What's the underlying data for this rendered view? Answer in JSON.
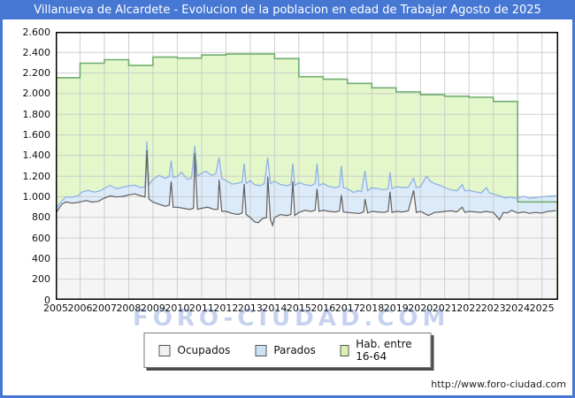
{
  "title_bar": {
    "text": "Villanueva de Alcardete - Evolucion de la poblacion en edad de Trabajar Agosto de 2025"
  },
  "watermark": "FORO-CIUDAD.COM",
  "footer": {
    "url": "http://www.foro-ciudad.com"
  },
  "colors": {
    "accent_blue": "#4677d3",
    "grid": "#c9c9c9",
    "frame": "#000000",
    "green_line": "#6fae6f",
    "green_fill": "#e4f7cb",
    "blue_line": "#90b3e2",
    "blue_fill": "#dcebf9",
    "dark_line": "#5f5f5f",
    "ocup_fill": "#f5f5f5",
    "plot_bg": "#ffffff"
  },
  "legend": [
    {
      "label": "Ocupados",
      "swatch": "#f2f2f2"
    },
    {
      "label": "Parados",
      "swatch": "#cfe1f5"
    },
    {
      "label": "Hab. entre 16-64",
      "swatch": "#d9f2ae"
    }
  ],
  "chart_data": {
    "type": "area",
    "title": "Villanueva de Alcardete - Evolucion de la poblacion en edad de Trabajar Agosto de 2025",
    "xlabel": "",
    "ylabel": "",
    "xlim": [
      2005,
      2025.667
    ],
    "ylim": [
      0,
      2600
    ],
    "grid": true,
    "legend_position": "bottom",
    "x_ticks": [
      2005,
      2006,
      2007,
      2008,
      2009,
      2010,
      2011,
      2012,
      2013,
      2014,
      2015,
      2016,
      2017,
      2018,
      2019,
      2020,
      2021,
      2022,
      2023,
      2024,
      2025
    ],
    "y_ticks": [
      {
        "label": "2.600",
        "value": 2600
      },
      {
        "label": "2.400",
        "value": 2400
      },
      {
        "label": "2.200",
        "value": 2200
      },
      {
        "label": "2.000",
        "value": 2000
      },
      {
        "label": "1.800",
        "value": 1800
      },
      {
        "label": "1.600",
        "value": 1600
      },
      {
        "label": "1.400",
        "value": 1400
      },
      {
        "label": "1.200",
        "value": 1200
      },
      {
        "label": "1.000",
        "value": 1000
      },
      {
        "label": "800",
        "value": 800
      },
      {
        "label": "600",
        "value": 600
      },
      {
        "label": "400",
        "value": 400
      },
      {
        "label": "200",
        "value": 200
      },
      {
        "label": "0",
        "value": 0
      }
    ],
    "series": [
      {
        "name": "Hab. entre 16-64",
        "mode": "step-yearly",
        "years": [
          2005,
          2006,
          2007,
          2008,
          2009,
          2010,
          2011,
          2012,
          2013,
          2014,
          2015,
          2016,
          2017,
          2018,
          2019,
          2020,
          2021,
          2022,
          2023,
          2024,
          2025
        ],
        "values": [
          2155,
          2295,
          2330,
          2275,
          2355,
          2345,
          2375,
          2385,
          2385,
          2340,
          2165,
          2140,
          2100,
          2057,
          2017,
          1990,
          1975,
          1965,
          1925,
          950,
          950
        ]
      },
      {
        "name": "Parados (tope apilado: ocupados + parados)",
        "mode": "points",
        "points": [
          [
            2005.0,
            880
          ],
          [
            2005.17,
            940
          ],
          [
            2005.42,
            1000
          ],
          [
            2005.67,
            995
          ],
          [
            2005.92,
            1010
          ],
          [
            2006.08,
            1045
          ],
          [
            2006.33,
            1062
          ],
          [
            2006.58,
            1045
          ],
          [
            2006.83,
            1058
          ],
          [
            2007.0,
            1082
          ],
          [
            2007.25,
            1110
          ],
          [
            2007.5,
            1078
          ],
          [
            2007.75,
            1092
          ],
          [
            2008.0,
            1105
          ],
          [
            2008.25,
            1112
          ],
          [
            2008.5,
            1088
          ],
          [
            2008.67,
            1098
          ],
          [
            2008.75,
            1536
          ],
          [
            2008.83,
            1118
          ],
          [
            2009.0,
            1168
          ],
          [
            2009.25,
            1208
          ],
          [
            2009.5,
            1178
          ],
          [
            2009.67,
            1198
          ],
          [
            2009.75,
            1350
          ],
          [
            2009.83,
            1188
          ],
          [
            2010.0,
            1198
          ],
          [
            2010.17,
            1238
          ],
          [
            2010.42,
            1168
          ],
          [
            2010.58,
            1182
          ],
          [
            2010.72,
            1493
          ],
          [
            2010.83,
            1198
          ],
          [
            2011.0,
            1228
          ],
          [
            2011.17,
            1248
          ],
          [
            2011.42,
            1208
          ],
          [
            2011.58,
            1222
          ],
          [
            2011.72,
            1380
          ],
          [
            2011.83,
            1178
          ],
          [
            2012.0,
            1158
          ],
          [
            2012.25,
            1122
          ],
          [
            2012.5,
            1132
          ],
          [
            2012.67,
            1142
          ],
          [
            2012.75,
            1322
          ],
          [
            2012.83,
            1128
          ],
          [
            2013.0,
            1158
          ],
          [
            2013.17,
            1118
          ],
          [
            2013.42,
            1108
          ],
          [
            2013.58,
            1128
          ],
          [
            2013.72,
            1380
          ],
          [
            2013.83,
            1128
          ],
          [
            2014.0,
            1152
          ],
          [
            2014.25,
            1118
          ],
          [
            2014.5,
            1108
          ],
          [
            2014.67,
            1118
          ],
          [
            2014.75,
            1322
          ],
          [
            2014.83,
            1108
          ],
          [
            2015.0,
            1138
          ],
          [
            2015.25,
            1118
          ],
          [
            2015.5,
            1108
          ],
          [
            2015.67,
            1128
          ],
          [
            2015.75,
            1322
          ],
          [
            2015.83,
            1108
          ],
          [
            2016.0,
            1128
          ],
          [
            2016.25,
            1098
          ],
          [
            2016.5,
            1088
          ],
          [
            2016.67,
            1098
          ],
          [
            2016.75,
            1300
          ],
          [
            2016.83,
            1088
          ],
          [
            2017.0,
            1078
          ],
          [
            2017.25,
            1042
          ],
          [
            2017.42,
            1060
          ],
          [
            2017.58,
            1048
          ],
          [
            2017.72,
            1252
          ],
          [
            2017.83,
            1058
          ],
          [
            2018.0,
            1088
          ],
          [
            2018.25,
            1078
          ],
          [
            2018.5,
            1068
          ],
          [
            2018.67,
            1078
          ],
          [
            2018.75,
            1238
          ],
          [
            2018.83,
            1078
          ],
          [
            2019.0,
            1098
          ],
          [
            2019.25,
            1088
          ],
          [
            2019.5,
            1092
          ],
          [
            2019.72,
            1180
          ],
          [
            2019.83,
            1088
          ],
          [
            2020.0,
            1098
          ],
          [
            2020.25,
            1198
          ],
          [
            2020.42,
            1148
          ],
          [
            2020.58,
            1128
          ],
          [
            2020.83,
            1108
          ],
          [
            2021.0,
            1088
          ],
          [
            2021.25,
            1068
          ],
          [
            2021.5,
            1058
          ],
          [
            2021.72,
            1118
          ],
          [
            2021.83,
            1058
          ],
          [
            2022.0,
            1062
          ],
          [
            2022.25,
            1048
          ],
          [
            2022.5,
            1038
          ],
          [
            2022.72,
            1088
          ],
          [
            2022.83,
            1038
          ],
          [
            2023.0,
            1028
          ],
          [
            2023.25,
            1008
          ],
          [
            2023.5,
            988
          ],
          [
            2023.67,
            998
          ],
          [
            2023.83,
            988
          ],
          [
            2024.0,
            988
          ],
          [
            2024.25,
            1005
          ],
          [
            2024.5,
            985
          ],
          [
            2024.75,
            992
          ],
          [
            2025.0,
            1000
          ],
          [
            2025.25,
            1005
          ],
          [
            2025.58,
            1010
          ]
        ]
      },
      {
        "name": "Ocupados",
        "mode": "points",
        "points": [
          [
            2005.0,
            835
          ],
          [
            2005.08,
            868
          ],
          [
            2005.25,
            928
          ],
          [
            2005.42,
            950
          ],
          [
            2005.67,
            938
          ],
          [
            2005.92,
            945
          ],
          [
            2006.0,
            950
          ],
          [
            2006.25,
            963
          ],
          [
            2006.5,
            948
          ],
          [
            2006.75,
            955
          ],
          [
            2007.0,
            988
          ],
          [
            2007.25,
            1008
          ],
          [
            2007.5,
            998
          ],
          [
            2007.75,
            1003
          ],
          [
            2008.0,
            1018
          ],
          [
            2008.25,
            1028
          ],
          [
            2008.5,
            1008
          ],
          [
            2008.67,
            998
          ],
          [
            2008.75,
            1450
          ],
          [
            2008.83,
            978
          ],
          [
            2009.0,
            948
          ],
          [
            2009.25,
            928
          ],
          [
            2009.5,
            908
          ],
          [
            2009.67,
            918
          ],
          [
            2009.75,
            1148
          ],
          [
            2009.83,
            898
          ],
          [
            2010.0,
            898
          ],
          [
            2010.25,
            888
          ],
          [
            2010.5,
            878
          ],
          [
            2010.67,
            888
          ],
          [
            2010.72,
            1422
          ],
          [
            2010.83,
            878
          ],
          [
            2011.0,
            888
          ],
          [
            2011.25,
            898
          ],
          [
            2011.5,
            878
          ],
          [
            2011.67,
            878
          ],
          [
            2011.72,
            1164
          ],
          [
            2011.83,
            858
          ],
          [
            2012.0,
            858
          ],
          [
            2012.25,
            838
          ],
          [
            2012.5,
            828
          ],
          [
            2012.67,
            843
          ],
          [
            2012.75,
            1124
          ],
          [
            2012.83,
            828
          ],
          [
            2013.0,
            798
          ],
          [
            2013.17,
            758
          ],
          [
            2013.33,
            748
          ],
          [
            2013.5,
            788
          ],
          [
            2013.67,
            798
          ],
          [
            2013.72,
            1193
          ],
          [
            2013.83,
            778
          ],
          [
            2013.92,
            722
          ],
          [
            2014.0,
            798
          ],
          [
            2014.25,
            828
          ],
          [
            2014.5,
            818
          ],
          [
            2014.67,
            828
          ],
          [
            2014.75,
            1148
          ],
          [
            2014.83,
            818
          ],
          [
            2015.0,
            848
          ],
          [
            2015.25,
            868
          ],
          [
            2015.5,
            858
          ],
          [
            2015.67,
            868
          ],
          [
            2015.75,
            1078
          ],
          [
            2015.83,
            858
          ],
          [
            2016.0,
            868
          ],
          [
            2016.25,
            858
          ],
          [
            2016.5,
            853
          ],
          [
            2016.67,
            863
          ],
          [
            2016.75,
            1018
          ],
          [
            2016.83,
            853
          ],
          [
            2017.0,
            848
          ],
          [
            2017.25,
            843
          ],
          [
            2017.5,
            838
          ],
          [
            2017.67,
            853
          ],
          [
            2017.72,
            978
          ],
          [
            2017.83,
            843
          ],
          [
            2018.0,
            858
          ],
          [
            2018.25,
            853
          ],
          [
            2018.5,
            848
          ],
          [
            2018.67,
            858
          ],
          [
            2018.75,
            1048
          ],
          [
            2018.83,
            848
          ],
          [
            2019.0,
            858
          ],
          [
            2019.25,
            853
          ],
          [
            2019.5,
            862
          ],
          [
            2019.72,
            1062
          ],
          [
            2019.83,
            848
          ],
          [
            2020.0,
            858
          ],
          [
            2020.17,
            838
          ],
          [
            2020.33,
            818
          ],
          [
            2020.58,
            848
          ],
          [
            2020.83,
            853
          ],
          [
            2021.0,
            858
          ],
          [
            2021.25,
            863
          ],
          [
            2021.5,
            853
          ],
          [
            2021.72,
            898
          ],
          [
            2021.83,
            848
          ],
          [
            2022.0,
            858
          ],
          [
            2022.25,
            853
          ],
          [
            2022.5,
            848
          ],
          [
            2022.67,
            858
          ],
          [
            2023.0,
            848
          ],
          [
            2023.25,
            778
          ],
          [
            2023.42,
            848
          ],
          [
            2023.58,
            843
          ],
          [
            2023.75,
            868
          ],
          [
            2024.0,
            843
          ],
          [
            2024.25,
            853
          ],
          [
            2024.5,
            838
          ],
          [
            2024.67,
            848
          ],
          [
            2025.0,
            843
          ],
          [
            2025.25,
            858
          ],
          [
            2025.58,
            865
          ]
        ]
      }
    ]
  }
}
